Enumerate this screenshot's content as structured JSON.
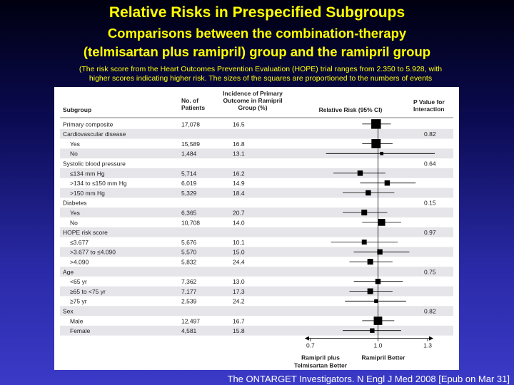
{
  "title": "Relative Risks in Prespecified Subgroups",
  "subtitle_line1": "Comparisons between the combination-therapy",
  "subtitle_line2": "(telmisartan plus ramipril) group and the ramipril group",
  "note_line1": "(The risk score from the Heart Outcomes Prevention Evaluation (HOPE) trial ranges from 2.350 to 5.928, with",
  "note_line2": "higher scores indicating higher risk. The sizes of the squares are proportioned to the numbers of events",
  "citation": "The ONTARGET Investigators. N Engl J Med 2008 [Epub on Mar 31]",
  "colors": {
    "title": "#ffff00",
    "band": "#e6e6ea",
    "marker": "#000000"
  },
  "chart_data": {
    "type": "forest",
    "headers": {
      "subgroup": "Subgroup",
      "patients": [
        "No. of",
        "Patients"
      ],
      "incidence": [
        "Incidence of Primary",
        "Outcome in Ramipril",
        "Group (%)"
      ],
      "rr": "Relative Risk (95% CI)",
      "pvalue": [
        "P Value for",
        "Interaction"
      ]
    },
    "xaxis": {
      "scale": "log",
      "ticks": [
        0.7,
        1.0,
        1.3
      ],
      "tick_labels": [
        "0.7",
        "1.0",
        "1.3"
      ],
      "reference": 1.0,
      "label_left": [
        "Ramipril plus",
        "Telmisartan Better"
      ],
      "label_right": [
        "Ramipril Better"
      ]
    },
    "rows": [
      {
        "label": "Primary composite",
        "indent": 0,
        "patients": "17,078",
        "incidence": "16.5",
        "pvalue": "",
        "rr": 0.99,
        "lo": 0.92,
        "hi": 1.07,
        "size": 1.0
      },
      {
        "label": "Cardiovascular disease",
        "indent": 0,
        "patients": "",
        "incidence": "",
        "pvalue": "0.82"
      },
      {
        "label": "Yes",
        "indent": 1,
        "patients": "15,589",
        "incidence": "16.8",
        "pvalue": "",
        "rr": 0.99,
        "lo": 0.92,
        "hi": 1.08,
        "size": 0.95
      },
      {
        "label": "No",
        "indent": 1,
        "patients": "1,484",
        "incidence": "13.1",
        "pvalue": "",
        "rr": 1.02,
        "lo": 0.76,
        "hi": 1.35,
        "size": 0.2
      },
      {
        "label": "Systolic blood pressure",
        "indent": 0,
        "patients": "",
        "incidence": "",
        "pvalue": "0.64"
      },
      {
        "label": "≤134 mm Hg",
        "indent": 1,
        "patients": "5,714",
        "incidence": "16.2",
        "pvalue": "",
        "rr": 0.91,
        "lo": 0.79,
        "hi": 1.04,
        "size": 0.45
      },
      {
        "label": ">134 to ≤150 mm Hg",
        "indent": 1,
        "patients": "6,019",
        "incidence": "14.9",
        "pvalue": "",
        "rr": 1.05,
        "lo": 0.91,
        "hi": 1.22,
        "size": 0.45
      },
      {
        "label": ">150 mm Hg",
        "indent": 1,
        "patients": "5,329",
        "incidence": "18.4",
        "pvalue": "",
        "rr": 0.95,
        "lo": 0.83,
        "hi": 1.09,
        "size": 0.45
      },
      {
        "label": "Diabetes",
        "indent": 0,
        "patients": "",
        "incidence": "",
        "pvalue": "0.15"
      },
      {
        "label": "Yes",
        "indent": 1,
        "patients": "6,365",
        "incidence": "20.7",
        "pvalue": "",
        "rr": 0.93,
        "lo": 0.83,
        "hi": 1.05,
        "size": 0.5
      },
      {
        "label": "No",
        "indent": 1,
        "patients": "10,708",
        "incidence": "14.0",
        "pvalue": "",
        "rr": 1.02,
        "lo": 0.92,
        "hi": 1.13,
        "size": 0.65
      },
      {
        "label": "HOPE risk score",
        "indent": 0,
        "patients": "",
        "incidence": "",
        "pvalue": "0.97"
      },
      {
        "label": "≤3.677",
        "indent": 1,
        "patients": "5,676",
        "incidence": "10.1",
        "pvalue": "",
        "rr": 0.93,
        "lo": 0.78,
        "hi": 1.11,
        "size": 0.4
      },
      {
        "label": ">3.677 to ≤4.090",
        "indent": 1,
        "patients": "5,570",
        "incidence": "15.0",
        "pvalue": "",
        "rr": 1.01,
        "lo": 0.88,
        "hi": 1.18,
        "size": 0.45
      },
      {
        "label": ">4.090",
        "indent": 1,
        "patients": "5,832",
        "incidence": "24.4",
        "pvalue": "",
        "rr": 0.96,
        "lo": 0.86,
        "hi": 1.08,
        "size": 0.5
      },
      {
        "label": "Age",
        "indent": 0,
        "patients": "",
        "incidence": "",
        "pvalue": "0.75"
      },
      {
        "label": "<65 yr",
        "indent": 1,
        "patients": "7,362",
        "incidence": "13.0",
        "pvalue": "",
        "rr": 1.0,
        "lo": 0.88,
        "hi": 1.14,
        "size": 0.45
      },
      {
        "label": "≥65 to <75 yr",
        "indent": 1,
        "patients": "7,177",
        "incidence": "17.3",
        "pvalue": "",
        "rr": 0.96,
        "lo": 0.86,
        "hi": 1.08,
        "size": 0.5
      },
      {
        "label": "≥75 yr",
        "indent": 1,
        "patients": "2,539",
        "incidence": "24.2",
        "pvalue": "",
        "rr": 0.99,
        "lo": 0.84,
        "hi": 1.16,
        "size": 0.25
      },
      {
        "label": "Sex",
        "indent": 0,
        "patients": "",
        "incidence": "",
        "pvalue": "0.82"
      },
      {
        "label": "Male",
        "indent": 1,
        "patients": "12,497",
        "incidence": "16.7",
        "pvalue": "",
        "rr": 1.0,
        "lo": 0.92,
        "hi": 1.09,
        "size": 0.85
      },
      {
        "label": "Female",
        "indent": 1,
        "patients": "4,581",
        "incidence": "15.8",
        "pvalue": "",
        "rr": 0.97,
        "lo": 0.83,
        "hi": 1.13,
        "size": 0.35
      }
    ]
  }
}
